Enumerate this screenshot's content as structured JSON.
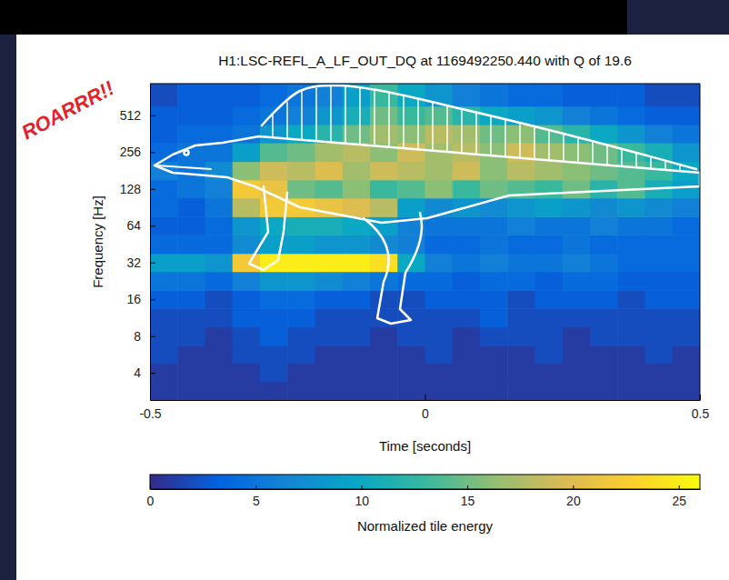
{
  "chart_data": {
    "type": "heatmap",
    "title": "H1:LSC-REFL_A_LF_OUT_DQ at 1169492250.440 with Q of 19.6",
    "x_label": "Time [seconds]",
    "y_label": "Frequency [Hz]",
    "annotation": "ROARRR!!",
    "log": "y",
    "grid": false,
    "xlim": [
      -0.5,
      0.5
    ],
    "xticks": [
      -0.5,
      0,
      0.5
    ],
    "ylim": [
      2.4,
      930
    ],
    "yticks": [
      4,
      8,
      16,
      32,
      64,
      128,
      256,
      512
    ],
    "x_edges": [
      -0.5,
      -0.45,
      -0.4,
      -0.35,
      -0.3,
      -0.25,
      -0.2,
      -0.15,
      -0.1,
      -0.05,
      0,
      0.05,
      0.1,
      0.15,
      0.2,
      0.25,
      0.3,
      0.35,
      0.4,
      0.45,
      0.5
    ],
    "y_edges": [
      2.4,
      3.4,
      4.8,
      6.7,
      9.5,
      13.5,
      19,
      27,
      38,
      54,
      76,
      108,
      152,
      215,
      305,
      430,
      610,
      930
    ],
    "cells": [
      [
        1,
        1,
        1,
        1,
        1,
        1,
        1,
        1,
        1,
        1,
        1,
        1,
        1,
        1,
        1,
        1,
        1,
        1,
        1,
        1
      ],
      [
        1,
        1,
        1,
        1,
        2,
        1,
        1,
        1,
        1,
        1,
        1,
        1,
        1,
        1,
        1,
        1,
        1,
        1,
        1,
        1
      ],
      [
        2,
        1,
        1,
        2,
        2,
        2,
        1,
        1,
        1,
        1,
        2,
        1,
        1,
        1,
        2,
        1,
        1,
        1,
        2,
        1
      ],
      [
        2,
        2,
        1,
        2,
        3,
        2,
        2,
        2,
        1,
        2,
        2,
        1,
        2,
        2,
        2,
        1,
        2,
        2,
        2,
        2
      ],
      [
        2,
        2,
        2,
        3,
        3,
        3,
        2,
        2,
        2,
        2,
        2,
        2,
        3,
        2,
        2,
        2,
        2,
        2,
        2,
        2
      ],
      [
        3,
        3,
        2,
        3,
        4,
        4,
        3,
        3,
        2,
        2,
        3,
        3,
        3,
        2,
        3,
        3,
        3,
        2,
        3,
        3
      ],
      [
        5,
        5,
        4,
        6,
        8,
        8,
        7,
        6,
        5,
        4,
        4,
        3,
        4,
        4,
        3,
        4,
        4,
        3,
        3,
        3
      ],
      [
        9,
        9,
        8,
        22,
        25,
        25,
        25,
        25,
        24,
        10,
        6,
        5,
        6,
        5,
        5,
        6,
        5,
        4,
        4,
        4
      ],
      [
        4,
        4,
        4,
        7,
        9,
        9,
        8,
        8,
        7,
        6,
        4,
        4,
        5,
        4,
        4,
        5,
        4,
        4,
        4,
        4
      ],
      [
        3,
        3,
        4,
        8,
        10,
        11,
        11,
        10,
        9,
        6,
        5,
        5,
        5,
        6,
        5,
        5,
        6,
        5,
        5,
        4
      ],
      [
        4,
        3,
        5,
        18,
        22,
        22,
        21,
        20,
        18,
        9,
        7,
        8,
        7,
        8,
        9,
        8,
        7,
        8,
        7,
        6
      ],
      [
        4,
        5,
        6,
        22,
        21,
        15,
        14,
        16,
        13,
        14,
        16,
        13,
        15,
        14,
        13,
        15,
        12,
        14,
        11,
        9
      ],
      [
        6,
        5,
        7,
        16,
        19,
        18,
        20,
        17,
        19,
        18,
        17,
        19,
        16,
        18,
        17,
        16,
        15,
        14,
        13,
        10
      ],
      [
        4,
        5,
        5,
        9,
        14,
        15,
        17,
        18,
        16,
        19,
        17,
        18,
        16,
        19,
        17,
        16,
        15,
        13,
        11,
        8
      ],
      [
        3,
        4,
        4,
        5,
        8,
        10,
        12,
        15,
        17,
        16,
        18,
        17,
        15,
        16,
        14,
        12,
        10,
        8,
        6,
        5
      ],
      [
        3,
        3,
        3,
        4,
        5,
        6,
        8,
        11,
        15,
        13,
        14,
        12,
        10,
        9,
        8,
        6,
        5,
        4,
        3,
        3
      ],
      [
        2,
        3,
        3,
        3,
        4,
        5,
        6,
        9,
        13,
        10,
        8,
        6,
        5,
        4,
        4,
        3,
        3,
        3,
        2,
        2
      ]
    ],
    "zlim": [
      0,
      26
    ],
    "zticks": [
      0,
      5,
      10,
      15,
      20,
      25
    ],
    "colorbar_label": "Normalized tile energy"
  }
}
